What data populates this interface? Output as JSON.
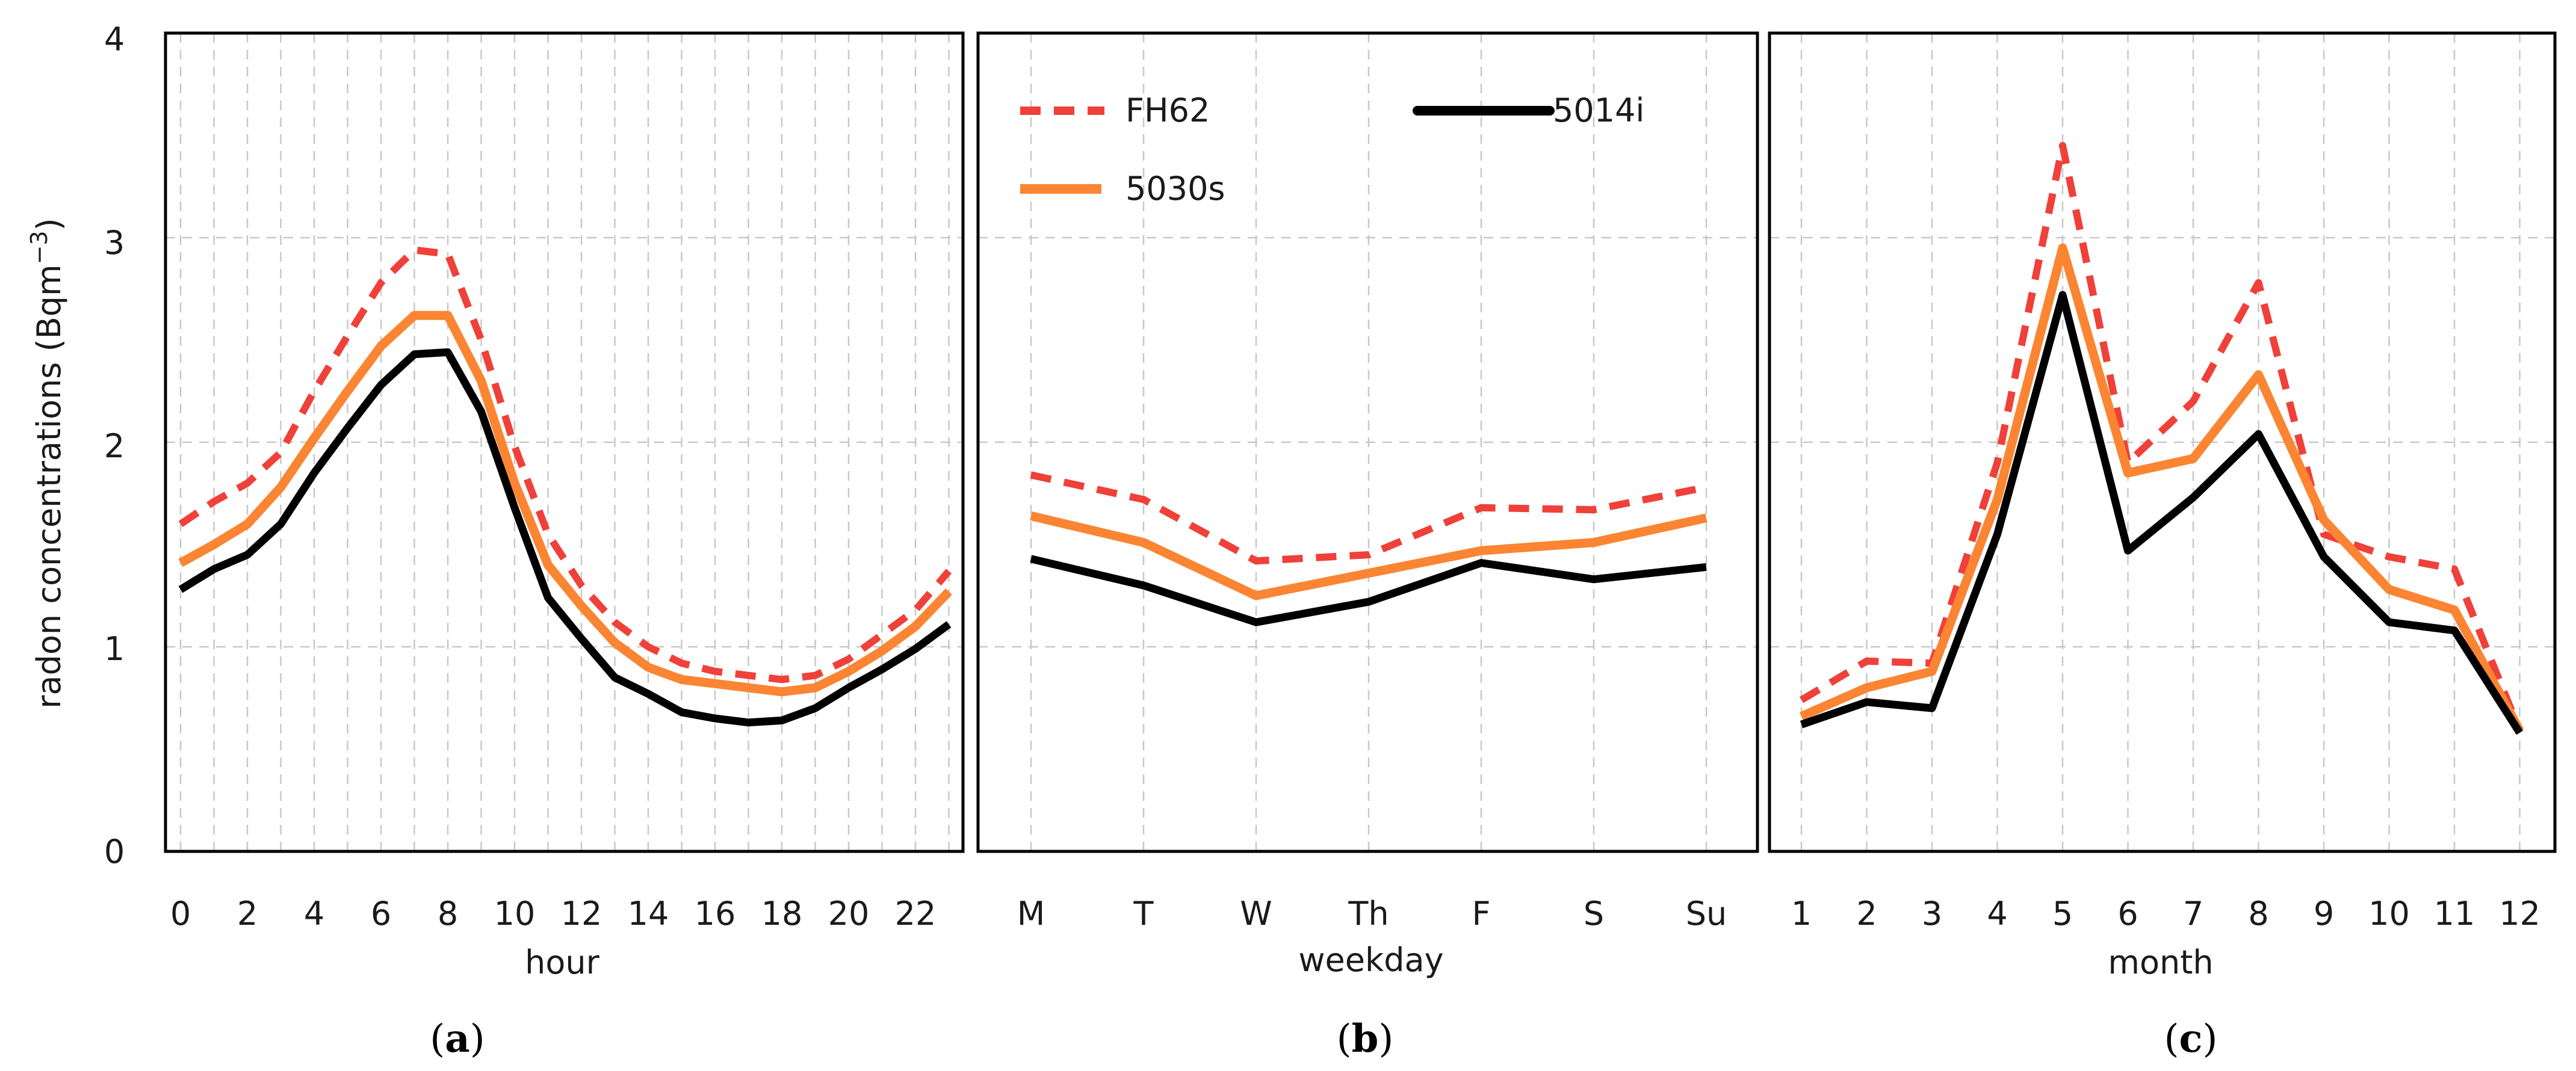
{
  "colors": {
    "fh62": "#f0403a",
    "s5030s": "#fb8532",
    "s5014i": "#000000"
  },
  "ylabel_main": "radon concentrations (Bqm",
  "ylabel_exp": "−3",
  "ylabel_close": ")",
  "yticks": [
    "0",
    "1",
    "2",
    "3",
    "4"
  ],
  "legend": [
    {
      "name": "FH62",
      "series": "fh62"
    },
    {
      "name": "5014i",
      "series": "s5014i"
    },
    {
      "name": "5030s",
      "series": "s5030s"
    }
  ],
  "captions": [
    {
      "open": "(",
      "letter": "a",
      "close": ")"
    },
    {
      "open": "(",
      "letter": "b",
      "close": ")"
    },
    {
      "open": "(",
      "letter": "c",
      "close": ")"
    }
  ],
  "chart_data": [
    {
      "type": "line",
      "panel": "a",
      "xlabel": "hour",
      "ylabel": "radon concentrations (Bqm−3)",
      "ylim": [
        0,
        4
      ],
      "grid": true,
      "x": [
        0,
        1,
        2,
        3,
        4,
        5,
        6,
        7,
        8,
        9,
        10,
        11,
        12,
        13,
        14,
        15,
        16,
        17,
        18,
        19,
        20,
        21,
        22,
        23
      ],
      "xticks": [
        "0",
        "2",
        "4",
        "6",
        "8",
        "10",
        "12",
        "14",
        "16",
        "18",
        "20",
        "22"
      ],
      "series": [
        {
          "name": "FH62",
          "key": "fh62",
          "values": [
            1.6,
            1.71,
            1.8,
            1.95,
            2.25,
            2.52,
            2.78,
            2.94,
            2.92,
            2.5,
            1.98,
            1.55,
            1.3,
            1.12,
            1.0,
            0.92,
            0.88,
            0.86,
            0.84,
            0.86,
            0.94,
            1.06,
            1.18,
            1.37
          ]
        },
        {
          "name": "5030s",
          "key": "s5030s",
          "values": [
            1.41,
            1.5,
            1.6,
            1.78,
            2.02,
            2.25,
            2.47,
            2.62,
            2.62,
            2.3,
            1.8,
            1.4,
            1.2,
            1.02,
            0.9,
            0.84,
            0.82,
            0.8,
            0.78,
            0.8,
            0.88,
            0.98,
            1.1,
            1.27
          ]
        },
        {
          "name": "5014i",
          "key": "s5014i",
          "values": [
            1.28,
            1.38,
            1.45,
            1.6,
            1.85,
            2.07,
            2.28,
            2.43,
            2.44,
            2.15,
            1.68,
            1.24,
            1.04,
            0.85,
            0.77,
            0.68,
            0.65,
            0.63,
            0.64,
            0.7,
            0.8,
            0.89,
            0.99,
            1.11
          ]
        }
      ]
    },
    {
      "type": "line",
      "panel": "b",
      "xlabel": "weekday",
      "ylim": [
        0,
        4
      ],
      "grid": true,
      "categories": [
        "M",
        "T",
        "W",
        "Th",
        "F",
        "S",
        "Su"
      ],
      "series": [
        {
          "name": "FH62",
          "key": "fh62",
          "values": [
            1.84,
            1.72,
            1.42,
            1.45,
            1.68,
            1.67,
            1.78
          ]
        },
        {
          "name": "5030s",
          "key": "s5030s",
          "values": [
            1.64,
            1.51,
            1.25,
            1.36,
            1.47,
            1.51,
            1.63
          ]
        },
        {
          "name": "5014i",
          "key": "s5014i",
          "values": [
            1.43,
            1.3,
            1.12,
            1.22,
            1.41,
            1.33,
            1.39
          ]
        }
      ]
    },
    {
      "type": "line",
      "panel": "c",
      "xlabel": "month",
      "ylim": [
        0,
        4
      ],
      "grid": true,
      "categories": [
        "1",
        "2",
        "3",
        "4",
        "5",
        "6",
        "7",
        "8",
        "9",
        "10",
        "11",
        "12"
      ],
      "series": [
        {
          "name": "FH62",
          "key": "fh62",
          "values": [
            0.74,
            0.93,
            0.92,
            1.9,
            3.45,
            1.9,
            2.2,
            2.78,
            1.55,
            1.44,
            1.38,
            0.59
          ]
        },
        {
          "name": "5030s",
          "key": "s5030s",
          "values": [
            0.66,
            0.8,
            0.88,
            1.72,
            2.95,
            1.85,
            1.92,
            2.33,
            1.62,
            1.28,
            1.18,
            0.59
          ]
        },
        {
          "name": "5014i",
          "key": "s5014i",
          "values": [
            0.62,
            0.73,
            0.7,
            1.55,
            2.72,
            1.47,
            1.73,
            2.04,
            1.44,
            1.12,
            1.08,
            0.58
          ]
        }
      ]
    }
  ]
}
